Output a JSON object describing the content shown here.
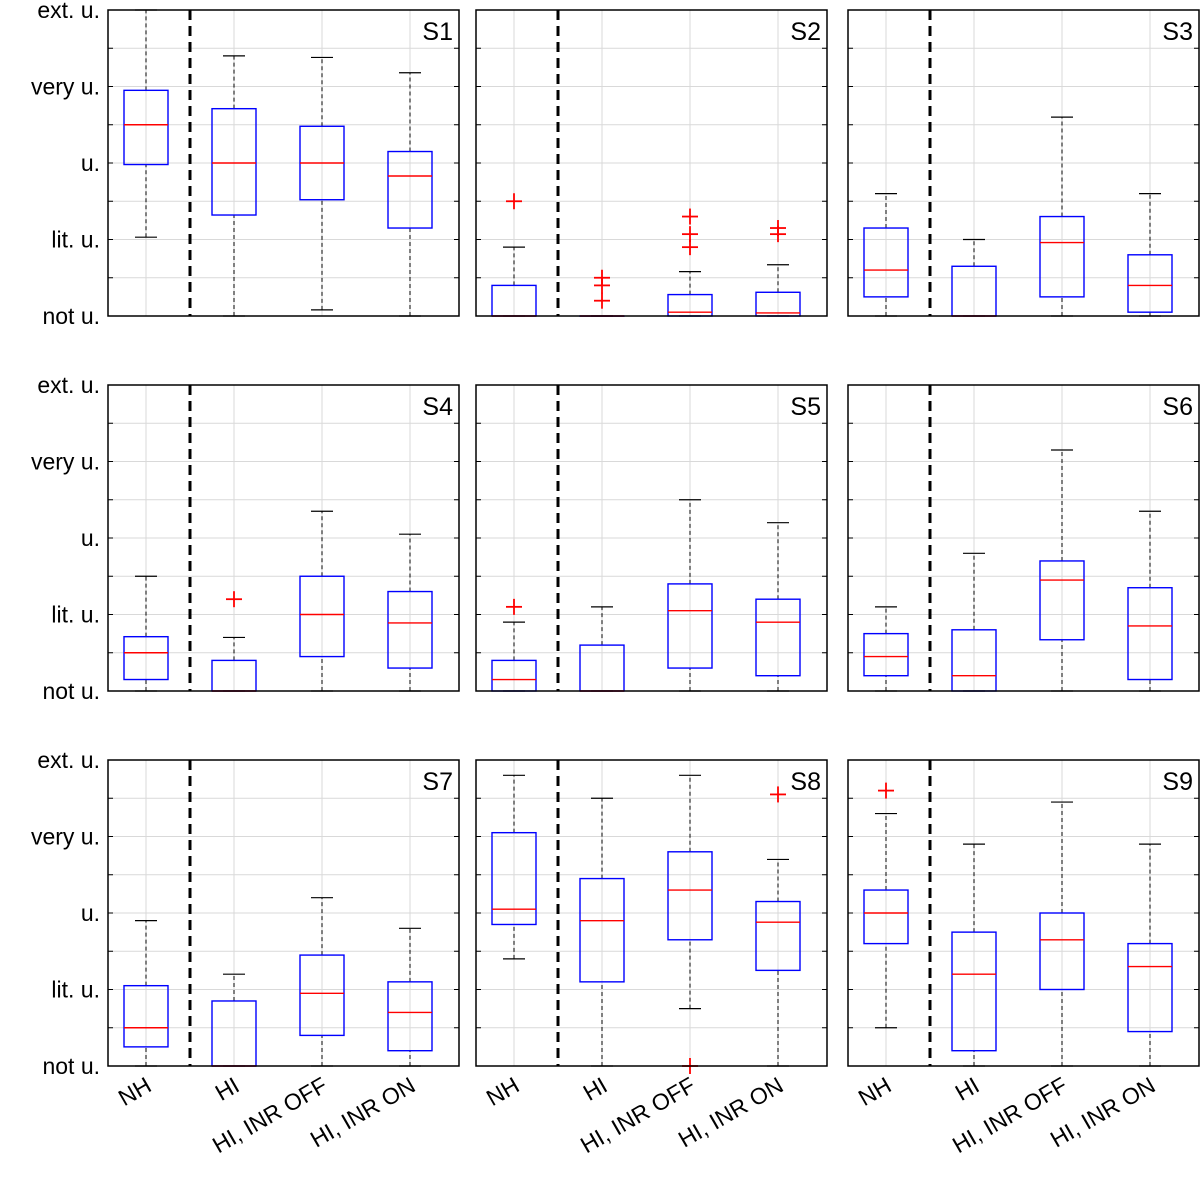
{
  "chart_data": {
    "type": "boxplot",
    "y_tick_labels": [
      "not u.",
      "lit. u.",
      "u.",
      "very u.",
      "ext. u."
    ],
    "ylim": [
      0,
      4
    ],
    "x_categories": [
      "NH",
      "HI",
      "HI, INR OFF",
      "HI, INR ON"
    ],
    "divider_after_category": "NH",
    "colors": {
      "box": "#0000ff",
      "median": "#ff0000",
      "whisker": "#000000",
      "outlier": "#ff0000",
      "grid": "#d9d9d9",
      "divider": "#000000"
    },
    "panels": [
      {
        "label": "S1",
        "boxes": [
          {
            "category": "NH",
            "q1": 1.98,
            "median": 2.5,
            "q3": 2.95,
            "whisker_low": 1.03,
            "whisker_high": 4.0,
            "outliers": []
          },
          {
            "category": "HI",
            "q1": 1.32,
            "median": 2.0,
            "q3": 2.71,
            "whisker_low": 0.0,
            "whisker_high": 3.4,
            "outliers": []
          },
          {
            "category": "HI, INR OFF",
            "q1": 1.52,
            "median": 2.0,
            "q3": 2.48,
            "whisker_low": 0.08,
            "whisker_high": 3.38,
            "outliers": []
          },
          {
            "category": "HI, INR ON",
            "q1": 1.15,
            "median": 1.83,
            "q3": 2.15,
            "whisker_low": 0.0,
            "whisker_high": 3.18,
            "outliers": []
          }
        ]
      },
      {
        "label": "S2",
        "boxes": [
          {
            "category": "NH",
            "q1": 0.0,
            "median": 0.0,
            "q3": 0.4,
            "whisker_low": 0.0,
            "whisker_high": 0.9,
            "outliers": [
              1.5
            ]
          },
          {
            "category": "HI",
            "q1": 0.0,
            "median": 0.0,
            "q3": 0.0,
            "whisker_low": 0.0,
            "whisker_high": 0.0,
            "outliers": [
              0.2,
              0.4,
              0.5
            ]
          },
          {
            "category": "HI, INR OFF",
            "q1": 0.0,
            "median": 0.05,
            "q3": 0.28,
            "whisker_low": 0.0,
            "whisker_high": 0.58,
            "outliers": [
              0.9,
              1.07,
              1.3
            ]
          },
          {
            "category": "HI, INR ON",
            "q1": 0.0,
            "median": 0.04,
            "q3": 0.31,
            "whisker_low": 0.0,
            "whisker_high": 0.67,
            "outliers": [
              1.07,
              1.15
            ]
          }
        ]
      },
      {
        "label": "S3",
        "boxes": [
          {
            "category": "NH",
            "q1": 0.25,
            "median": 0.6,
            "q3": 1.15,
            "whisker_low": 0.0,
            "whisker_high": 1.6,
            "outliers": []
          },
          {
            "category": "HI",
            "q1": 0.0,
            "median": 0.0,
            "q3": 0.65,
            "whisker_low": 0.0,
            "whisker_high": 1.0,
            "outliers": []
          },
          {
            "category": "HI, INR OFF",
            "q1": 0.25,
            "median": 0.96,
            "q3": 1.3,
            "whisker_low": 0.0,
            "whisker_high": 2.6,
            "outliers": []
          },
          {
            "category": "HI, INR ON",
            "q1": 0.05,
            "median": 0.4,
            "q3": 0.8,
            "whisker_low": 0.0,
            "whisker_high": 1.6,
            "outliers": []
          }
        ]
      },
      {
        "label": "S4",
        "boxes": [
          {
            "category": "NH",
            "q1": 0.15,
            "median": 0.5,
            "q3": 0.71,
            "whisker_low": 0.0,
            "whisker_high": 1.5,
            "outliers": []
          },
          {
            "category": "HI",
            "q1": 0.0,
            "median": 0.0,
            "q3": 0.4,
            "whisker_low": 0.0,
            "whisker_high": 0.7,
            "outliers": [
              1.2
            ]
          },
          {
            "category": "HI, INR OFF",
            "q1": 0.45,
            "median": 1.0,
            "q3": 1.5,
            "whisker_low": 0.0,
            "whisker_high": 2.35,
            "outliers": []
          },
          {
            "category": "HI, INR ON",
            "q1": 0.3,
            "median": 0.89,
            "q3": 1.3,
            "whisker_low": 0.0,
            "whisker_high": 2.05,
            "outliers": []
          }
        ]
      },
      {
        "label": "S5",
        "boxes": [
          {
            "category": "NH",
            "q1": 0.0,
            "median": 0.15,
            "q3": 0.4,
            "whisker_low": 0.0,
            "whisker_high": 0.9,
            "outliers": [
              1.1
            ]
          },
          {
            "category": "HI",
            "q1": 0.0,
            "median": 0.0,
            "q3": 0.6,
            "whisker_low": 0.0,
            "whisker_high": 1.1,
            "outliers": []
          },
          {
            "category": "HI, INR OFF",
            "q1": 0.3,
            "median": 1.05,
            "q3": 1.4,
            "whisker_low": 0.0,
            "whisker_high": 2.5,
            "outliers": []
          },
          {
            "category": "HI, INR ON",
            "q1": 0.2,
            "median": 0.9,
            "q3": 1.2,
            "whisker_low": 0.0,
            "whisker_high": 2.2,
            "outliers": []
          }
        ]
      },
      {
        "label": "S6",
        "boxes": [
          {
            "category": "NH",
            "q1": 0.2,
            "median": 0.45,
            "q3": 0.75,
            "whisker_low": 0.0,
            "whisker_high": 1.1,
            "outliers": []
          },
          {
            "category": "HI",
            "q1": 0.0,
            "median": 0.2,
            "q3": 0.8,
            "whisker_low": 0.0,
            "whisker_high": 1.8,
            "outliers": []
          },
          {
            "category": "HI, INR OFF",
            "q1": 0.67,
            "median": 1.45,
            "q3": 1.7,
            "whisker_low": 0.0,
            "whisker_high": 3.15,
            "outliers": []
          },
          {
            "category": "HI, INR ON",
            "q1": 0.15,
            "median": 0.85,
            "q3": 1.35,
            "whisker_low": 0.0,
            "whisker_high": 2.35,
            "outliers": []
          }
        ]
      },
      {
        "label": "S7",
        "boxes": [
          {
            "category": "NH",
            "q1": 0.25,
            "median": 0.5,
            "q3": 1.05,
            "whisker_low": 0.0,
            "whisker_high": 1.9,
            "outliers": []
          },
          {
            "category": "HI",
            "q1": 0.0,
            "median": 0.0,
            "q3": 0.85,
            "whisker_low": 0.0,
            "whisker_high": 1.2,
            "outliers": []
          },
          {
            "category": "HI, INR OFF",
            "q1": 0.4,
            "median": 0.95,
            "q3": 1.45,
            "whisker_low": 0.0,
            "whisker_high": 2.2,
            "outliers": []
          },
          {
            "category": "HI, INR ON",
            "q1": 0.2,
            "median": 0.7,
            "q3": 1.1,
            "whisker_low": 0.0,
            "whisker_high": 1.8,
            "outliers": []
          }
        ]
      },
      {
        "label": "S8",
        "boxes": [
          {
            "category": "NH",
            "q1": 1.85,
            "median": 2.05,
            "q3": 3.05,
            "whisker_low": 1.4,
            "whisker_high": 3.8,
            "outliers": []
          },
          {
            "category": "HI",
            "q1": 1.1,
            "median": 1.9,
            "q3": 2.45,
            "whisker_low": 0.0,
            "whisker_high": 3.5,
            "outliers": []
          },
          {
            "category": "HI, INR OFF",
            "q1": 1.65,
            "median": 2.3,
            "q3": 2.8,
            "whisker_low": 0.75,
            "whisker_high": 3.8,
            "outliers": [
              0.0
            ]
          },
          {
            "category": "HI, INR ON",
            "q1": 1.25,
            "median": 1.88,
            "q3": 2.15,
            "whisker_low": 0.0,
            "whisker_high": 2.7,
            "outliers": [
              3.55
            ]
          }
        ]
      },
      {
        "label": "S9",
        "boxes": [
          {
            "category": "NH",
            "q1": 1.6,
            "median": 2.0,
            "q3": 2.3,
            "whisker_low": 0.5,
            "whisker_high": 3.3,
            "outliers": [
              3.6
            ]
          },
          {
            "category": "HI",
            "q1": 0.2,
            "median": 1.2,
            "q3": 1.75,
            "whisker_low": 0.0,
            "whisker_high": 2.9,
            "outliers": []
          },
          {
            "category": "HI, INR OFF",
            "q1": 1.0,
            "median": 1.65,
            "q3": 2.0,
            "whisker_low": 0.0,
            "whisker_high": 3.45,
            "outliers": []
          },
          {
            "category": "HI, INR ON",
            "q1": 0.45,
            "median": 1.3,
            "q3": 1.6,
            "whisker_low": 0.0,
            "whisker_high": 2.9,
            "outliers": []
          }
        ]
      }
    ]
  }
}
